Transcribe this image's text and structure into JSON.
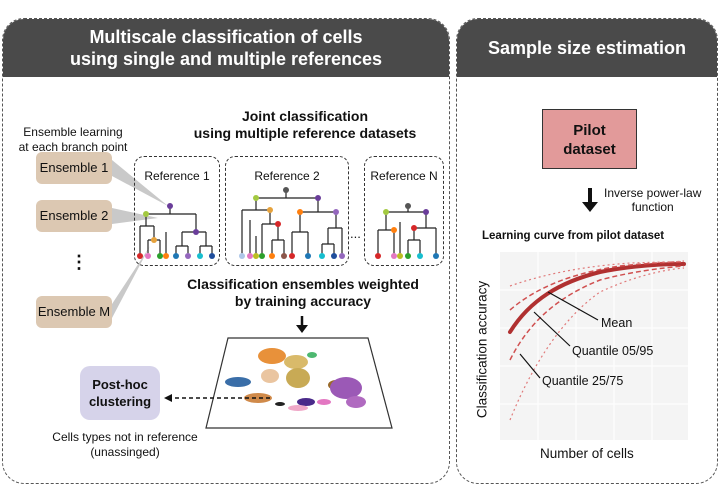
{
  "left_panel": {
    "title_line1": "Multiscale classification of cells",
    "title_line2": "using single and multiple references",
    "ensemble_caption_line1": "Ensemble learning",
    "ensemble_caption_line2": "at each branch point",
    "ensembles": [
      "Ensemble 1",
      "Ensemble 2",
      "⋮",
      "Ensemble M"
    ],
    "joint_title_line1": "Joint classification",
    "joint_title_line2": "using multiple reference datasets",
    "references": [
      "Reference 1",
      "Reference 2",
      "Reference N"
    ],
    "ellipsis": "...",
    "weighted_line1": "Classification ensembles weighted",
    "weighted_line2": "by training accuracy",
    "posthoc_line1": "Post-hoc",
    "posthoc_line2": "clustering",
    "unassigned_line1": "Cells types not in reference",
    "unassigned_line2": "(unassinged)"
  },
  "right_panel": {
    "title": "Sample size estimation",
    "pilot_line1": "Pilot",
    "pilot_line2": "dataset",
    "inverse_line1": "Inverse power-law",
    "inverse_line2": "function",
    "curve_title": "Learning curve from pilot dataset",
    "ylabel": "Classification accuracy",
    "xlabel": "Number of cells",
    "annotations": [
      "Mean",
      "Quantile 05/95",
      "Quantile 25/75"
    ],
    "curve_color": "#b03030",
    "quantile_color": "#e07b7b"
  },
  "colors": {
    "header": "#4a4a4a",
    "ensemble_box": "#dcc8b2",
    "pilot_box": "#e29a9a",
    "posthoc_box": "#d6d3ea"
  }
}
